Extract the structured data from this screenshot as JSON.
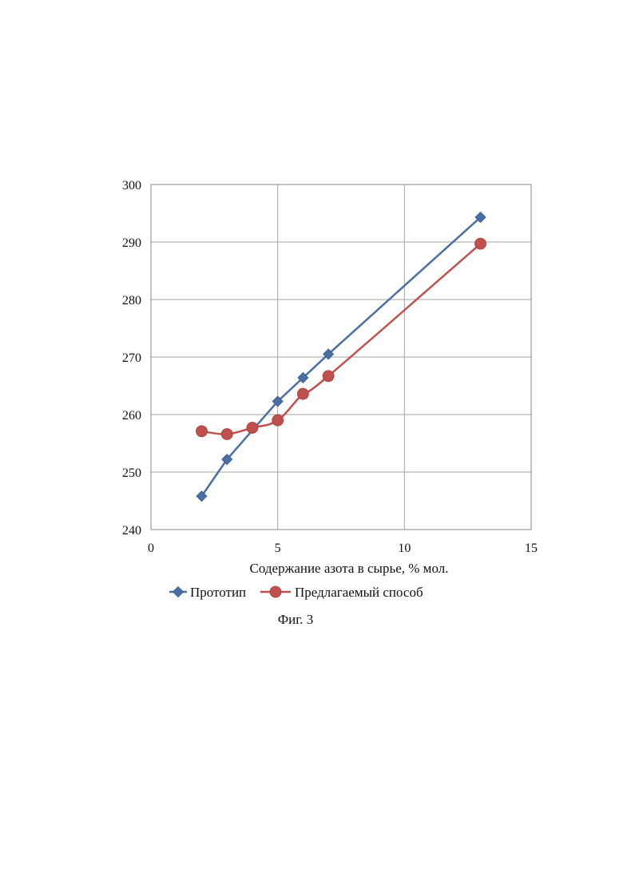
{
  "chart_data": {
    "type": "line",
    "title": "",
    "xlabel": "Содержание азота в сырье, % мол.",
    "ylabel": "",
    "xlim": [
      0,
      15
    ],
    "ylim": [
      240,
      300
    ],
    "x_ticks": [
      0,
      5,
      10,
      15
    ],
    "y_ticks": [
      240,
      250,
      260,
      270,
      280,
      290,
      300
    ],
    "grid": true,
    "legend_position": "bottom",
    "series": [
      {
        "name": "Прототип",
        "color": "#4a6fa5",
        "marker": "diamond",
        "x": [
          2,
          3,
          5,
          6,
          7,
          13
        ],
        "y": [
          245.8,
          252.2,
          262.3,
          266.4,
          270.5,
          294.3
        ]
      },
      {
        "name": "Предлагаемый способ",
        "color": "#c0504d",
        "marker": "circle",
        "x": [
          2,
          3,
          4,
          5,
          6,
          7,
          13
        ],
        "y": [
          257.1,
          256.6,
          257.7,
          259.0,
          263.6,
          266.7,
          289.7
        ]
      }
    ]
  },
  "caption": "Фиг. 3"
}
